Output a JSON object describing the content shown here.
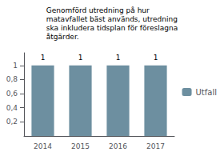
{
  "chart_data": {
    "type": "bar",
    "title": "Genomförd utredning på hur\nmatavfallet bäst används, utredning\nska inkludera tidsplan för föreslagna\nåtgärder.",
    "categories": [
      "2014",
      "2015",
      "2016",
      "2017"
    ],
    "series": [
      {
        "name": "Utfall",
        "color": "#6d8fa0",
        "values": [
          1,
          1,
          1,
          1
        ]
      }
    ],
    "ylim": [
      0,
      1.18
    ],
    "yticks": [
      {
        "value": 0.2,
        "label": "0,2"
      },
      {
        "value": 0.4,
        "label": "0,4"
      },
      {
        "value": 0.6,
        "label": "0,6"
      },
      {
        "value": 0.8,
        "label": "0,8"
      },
      1
    ],
    "grid": false,
    "legend": "right",
    "data_labels": true
  }
}
